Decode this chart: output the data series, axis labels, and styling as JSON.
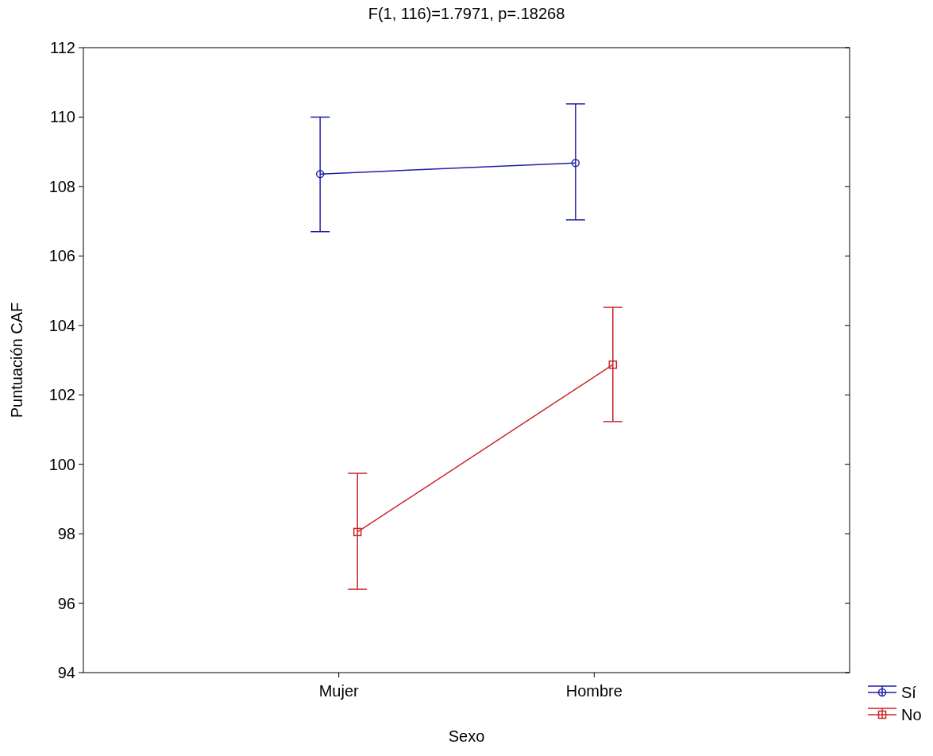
{
  "chart_data": {
    "type": "line",
    "title": "F(1, 116)=1.7971, p=.18268",
    "xlabel": "Sexo",
    "ylabel": "Puntuación CAF",
    "categories": [
      "Mujer",
      "Hombre"
    ],
    "series": [
      {
        "name": "Sí",
        "color": "#1f1fa8",
        "marker": "circle",
        "values": [
          108.36,
          108.68
        ],
        "errors": [
          [
            106.7,
            110.0
          ],
          [
            107.04,
            110.38
          ]
        ]
      },
      {
        "name": "No",
        "color": "#c8262b",
        "marker": "square",
        "values": [
          98.05,
          102.87
        ],
        "errors": [
          [
            96.4,
            99.74
          ],
          [
            101.23,
            104.52
          ]
        ]
      }
    ],
    "ylim": [
      94,
      112
    ],
    "yticks": [
      94,
      96,
      98,
      100,
      102,
      104,
      106,
      108,
      110,
      112
    ],
    "grid": false,
    "legend": "bottom right"
  }
}
